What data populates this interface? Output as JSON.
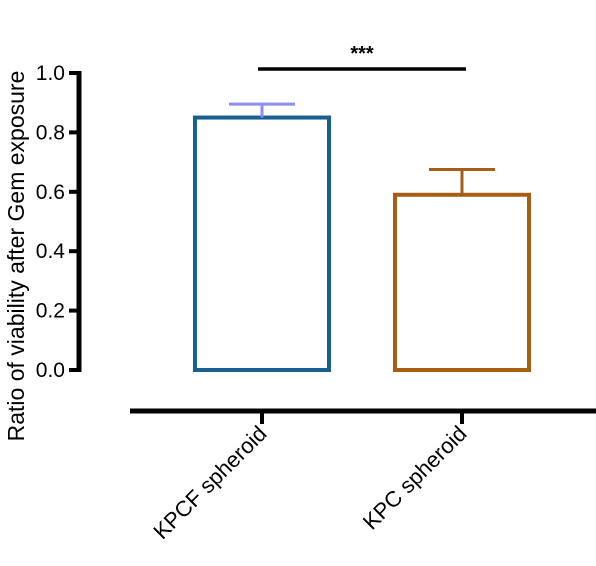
{
  "chart_data": {
    "type": "bar",
    "title": "",
    "xlabel": "",
    "ylabel": "Ratio of viability after Gem exposure",
    "ylim": [
      0,
      1.0
    ],
    "yticks": [
      "0.0",
      "0.2",
      "0.4",
      "0.6",
      "0.8",
      "1.0"
    ],
    "categories": [
      "KPCF spheroid",
      "KPC spheroid"
    ],
    "values": [
      0.85,
      0.59
    ],
    "errors": [
      0.045,
      0.085
    ],
    "bar_colors": [
      "#1a5f91",
      "#a65e14"
    ],
    "error_colors": [
      "#8a8ef0",
      "#a65e14"
    ],
    "bar_fill": "#ffffff",
    "significance": {
      "label": "***",
      "between": [
        0,
        1
      ],
      "level": 1.01
    },
    "grid": false
  }
}
